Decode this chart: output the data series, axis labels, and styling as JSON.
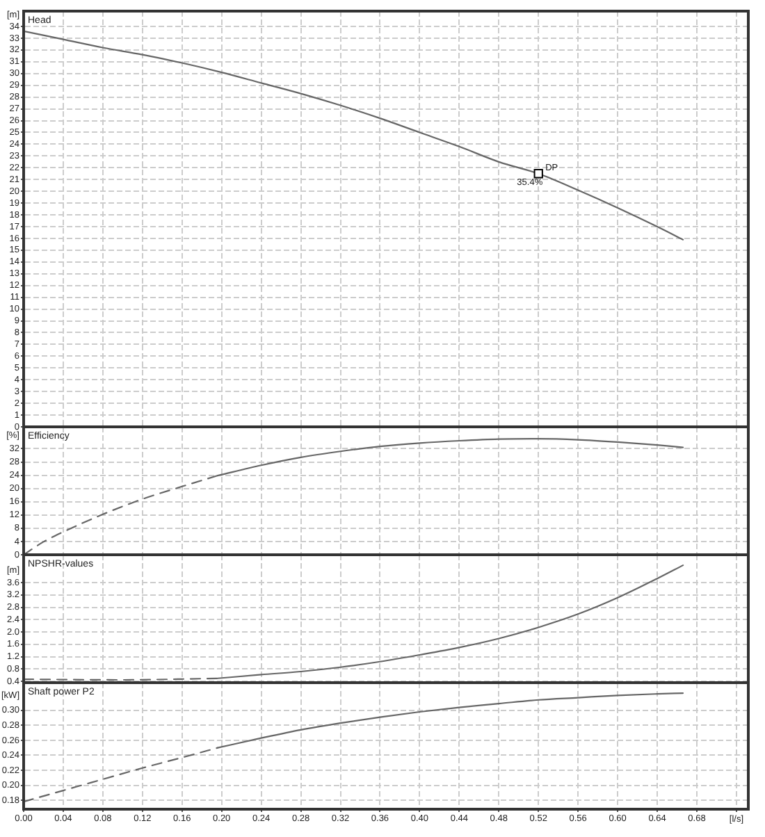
{
  "chart_data": [
    {
      "type": "line",
      "title": "Head",
      "ylabel": "[m]",
      "xlim": [
        0,
        0.732
      ],
      "ylim": [
        0,
        35.3
      ],
      "xticks": [
        0,
        0.04,
        0.08,
        0.12,
        0.16,
        0.2,
        0.24,
        0.28,
        0.32,
        0.36,
        0.4,
        0.44,
        0.48,
        0.52,
        0.56,
        0.6,
        0.64,
        0.68,
        0.72
      ],
      "yticks": [
        0,
        1,
        2,
        3,
        4,
        5,
        6,
        7,
        8,
        9,
        10,
        11,
        12,
        13,
        14,
        15,
        16,
        17,
        18,
        19,
        20,
        21,
        22,
        23,
        24,
        25,
        26,
        27,
        28,
        29,
        30,
        31,
        32,
        33,
        34
      ],
      "grid": true,
      "tick_labels": "y",
      "marker": "none",
      "series": [
        {
          "color": "#666666",
          "line_style": "solid",
          "x": [
            0,
            0.04,
            0.08,
            0.12,
            0.16,
            0.2,
            0.24,
            0.28,
            0.32,
            0.36,
            0.4,
            0.44,
            0.48,
            0.52,
            0.56,
            0.6,
            0.64,
            0.666
          ],
          "values": [
            33.6,
            32.9,
            32.2,
            31.6,
            30.9,
            30.1,
            29.2,
            28.3,
            27.3,
            26.2,
            25.0,
            23.8,
            22.5,
            21.5,
            20.1,
            18.6,
            17.0,
            15.9
          ]
        },
        {
          "type": "scatter",
          "marker": "square",
          "color": "#000000",
          "x": [
            0.52
          ],
          "values": [
            21.5
          ]
        }
      ],
      "annotations": [
        {
          "text": "DP",
          "x": 0.52,
          "y": 21.5
        },
        {
          "text": "35.4%",
          "x": 0.52,
          "y": 21.5
        }
      ]
    },
    {
      "type": "line",
      "title": "Efficiency",
      "ylabel": "[%]",
      "xlim": [
        0,
        0.732
      ],
      "ylim": [
        0,
        38.6
      ],
      "xticks": [
        0,
        0.04,
        0.08,
        0.12,
        0.16,
        0.2,
        0.24,
        0.28,
        0.32,
        0.36,
        0.4,
        0.44,
        0.48,
        0.52,
        0.56,
        0.6,
        0.64,
        0.68,
        0.72
      ],
      "yticks": [
        0,
        4,
        8,
        12,
        16,
        20,
        24,
        28,
        32
      ],
      "grid": true,
      "tick_labels": "y",
      "marker": "none",
      "series": [
        {
          "color": "#666666",
          "line_style": "dashed",
          "x": [
            0,
            0.02,
            0.04,
            0.08,
            0.12,
            0.16,
            0.196
          ],
          "values": [
            0,
            3.9,
            6.9,
            12.2,
            16.8,
            20.6,
            23.9
          ]
        },
        {
          "color": "#666666",
          "line_style": "solid",
          "x": [
            0.196,
            0.24,
            0.28,
            0.32,
            0.36,
            0.4,
            0.44,
            0.48,
            0.52,
            0.56,
            0.6,
            0.64,
            0.666
          ],
          "values": [
            23.9,
            27.0,
            29.4,
            31.2,
            32.7,
            33.7,
            34.4,
            34.9,
            35.0,
            34.7,
            34.0,
            33.1,
            32.4
          ]
        }
      ]
    },
    {
      "type": "line",
      "title": "NPSHR-values",
      "ylabel": "[m]",
      "xlim": [
        0,
        0.732
      ],
      "ylim": [
        0.36,
        4.5
      ],
      "xticks": [
        0,
        0.04,
        0.08,
        0.12,
        0.16,
        0.2,
        0.24,
        0.28,
        0.32,
        0.36,
        0.4,
        0.44,
        0.48,
        0.52,
        0.56,
        0.6,
        0.64,
        0.68,
        0.72
      ],
      "yticks": [
        0.4,
        0.8,
        1.2,
        1.6,
        {
          "value": 2,
          "label": "2.0"
        },
        2.4,
        2.8,
        3.2,
        3.6
      ],
      "grid": true,
      "tick_labels": "y",
      "marker": "none",
      "series": [
        {
          "color": "#666666",
          "line_style": "dashed",
          "x": [
            0,
            0.1,
            0.196
          ],
          "values": [
            0.47,
            0.45,
            0.5
          ]
        },
        {
          "color": "#666666",
          "line_style": "solid",
          "x": [
            0.196,
            0.24,
            0.28,
            0.32,
            0.36,
            0.4,
            0.44,
            0.48,
            0.52,
            0.56,
            0.6,
            0.64,
            0.666
          ],
          "values": [
            0.5,
            0.62,
            0.72,
            0.86,
            1.04,
            1.26,
            1.5,
            1.79,
            2.15,
            2.58,
            3.11,
            3.73,
            4.16
          ]
        }
      ]
    },
    {
      "type": "line",
      "title": "Shaft power P2",
      "ylabel": "[kW]",
      "xlabel": "[l/s]",
      "xlim": [
        0,
        0.732
      ],
      "ylim": [
        0.168,
        0.337
      ],
      "xticks": [
        {
          "value": 0,
          "label": "0.00"
        },
        0.04,
        0.08,
        0.12,
        0.16,
        {
          "value": 0.2,
          "label": "0.20"
        },
        0.24,
        0.28,
        0.32,
        0.36,
        {
          "value": 0.4,
          "label": "0.40"
        },
        0.44,
        0.48,
        0.52,
        0.56,
        {
          "value": 0.6,
          "label": "0.60"
        },
        0.64,
        0.68,
        {
          "value": 0.72,
          "label": null
        }
      ],
      "yticks": [
        0.18,
        {
          "value": 0.2,
          "label": "0.20"
        },
        0.22,
        0.24,
        0.26,
        0.28,
        {
          "value": 0.3,
          "label": "0.30"
        }
      ],
      "grid": true,
      "marker": "none",
      "series": [
        {
          "color": "#666666",
          "line_style": "dashed",
          "x": [
            0,
            0.04,
            0.08,
            0.12,
            0.16,
            0.196
          ],
          "values": [
            0.178,
            0.193,
            0.208,
            0.223,
            0.237,
            0.25
          ]
        },
        {
          "color": "#666666",
          "line_style": "solid",
          "x": [
            0.196,
            0.24,
            0.28,
            0.32,
            0.36,
            0.4,
            0.44,
            0.48,
            0.52,
            0.56,
            0.6,
            0.64,
            0.666
          ],
          "values": [
            0.25,
            0.263,
            0.274,
            0.283,
            0.291,
            0.298,
            0.304,
            0.309,
            0.314,
            0.317,
            0.32,
            0.322,
            0.323
          ]
        }
      ]
    }
  ]
}
